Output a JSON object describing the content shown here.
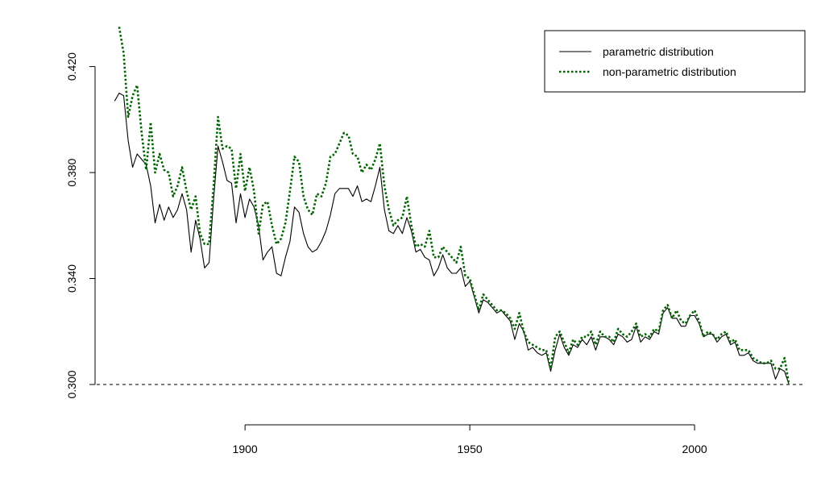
{
  "chart_data": {
    "type": "line",
    "title": "",
    "xlabel": "",
    "ylabel": "",
    "xlim": [
      1867,
      2024
    ],
    "ylim": [
      0.293,
      0.436
    ],
    "x_ticks": [
      1900,
      1950,
      2000
    ],
    "y_ticks": [
      0.3,
      0.34,
      0.38,
      0.42
    ],
    "x_tick_labels": [
      "1900",
      "1950",
      "2000"
    ],
    "y_tick_labels": [
      "0.300",
      "0.340",
      "0.380",
      "0.420"
    ],
    "reference_line": 0.3,
    "grid": false,
    "legend_position": "top-right",
    "series": [
      {
        "name": "parametric distribution",
        "color": "#000000",
        "style": "solid",
        "points": [
          [
            1871,
            0.407
          ],
          [
            1872,
            0.41
          ],
          [
            1873,
            0.409
          ],
          [
            1874,
            0.392
          ],
          [
            1875,
            0.382
          ],
          [
            1876,
            0.387
          ],
          [
            1877,
            0.385
          ],
          [
            1878,
            0.383
          ],
          [
            1879,
            0.375
          ],
          [
            1880,
            0.361
          ],
          [
            1881,
            0.368
          ],
          [
            1882,
            0.362
          ],
          [
            1883,
            0.367
          ],
          [
            1884,
            0.363
          ],
          [
            1885,
            0.366
          ],
          [
            1886,
            0.372
          ],
          [
            1887,
            0.366
          ],
          [
            1888,
            0.35
          ],
          [
            1889,
            0.362
          ],
          [
            1890,
            0.355
          ],
          [
            1891,
            0.344
          ],
          [
            1892,
            0.346
          ],
          [
            1893,
            0.37
          ],
          [
            1894,
            0.39
          ],
          [
            1895,
            0.384
          ],
          [
            1896,
            0.377
          ],
          [
            1897,
            0.376
          ],
          [
            1898,
            0.361
          ],
          [
            1899,
            0.372
          ],
          [
            1900,
            0.363
          ],
          [
            1901,
            0.37
          ],
          [
            1902,
            0.367
          ],
          [
            1903,
            0.36
          ],
          [
            1904,
            0.347
          ],
          [
            1905,
            0.35
          ],
          [
            1906,
            0.352
          ],
          [
            1907,
            0.342
          ],
          [
            1908,
            0.341
          ],
          [
            1909,
            0.348
          ],
          [
            1910,
            0.354
          ],
          [
            1911,
            0.367
          ],
          [
            1912,
            0.365
          ],
          [
            1913,
            0.357
          ],
          [
            1914,
            0.352
          ],
          [
            1915,
            0.35
          ],
          [
            1916,
            0.351
          ],
          [
            1917,
            0.354
          ],
          [
            1918,
            0.358
          ],
          [
            1919,
            0.364
          ],
          [
            1920,
            0.372
          ],
          [
            1921,
            0.374
          ],
          [
            1922,
            0.374
          ],
          [
            1923,
            0.374
          ],
          [
            1924,
            0.371
          ],
          [
            1925,
            0.375
          ],
          [
            1926,
            0.369
          ],
          [
            1927,
            0.37
          ],
          [
            1928,
            0.369
          ],
          [
            1929,
            0.375
          ],
          [
            1930,
            0.382
          ],
          [
            1931,
            0.366
          ],
          [
            1932,
            0.358
          ],
          [
            1933,
            0.357
          ],
          [
            1934,
            0.36
          ],
          [
            1935,
            0.357
          ],
          [
            1936,
            0.363
          ],
          [
            1937,
            0.358
          ],
          [
            1938,
            0.35
          ],
          [
            1939,
            0.351
          ],
          [
            1940,
            0.348
          ],
          [
            1941,
            0.347
          ],
          [
            1942,
            0.341
          ],
          [
            1943,
            0.344
          ],
          [
            1944,
            0.349
          ],
          [
            1945,
            0.344
          ],
          [
            1946,
            0.342
          ],
          [
            1947,
            0.342
          ],
          [
            1948,
            0.344
          ],
          [
            1949,
            0.337
          ],
          [
            1950,
            0.339
          ],
          [
            1951,
            0.333
          ],
          [
            1952,
            0.327
          ],
          [
            1953,
            0.332
          ],
          [
            1954,
            0.331
          ],
          [
            1955,
            0.329
          ],
          [
            1956,
            0.327
          ],
          [
            1957,
            0.328
          ],
          [
            1958,
            0.326
          ],
          [
            1959,
            0.324
          ],
          [
            1960,
            0.317
          ],
          [
            1961,
            0.323
          ],
          [
            1962,
            0.32
          ],
          [
            1963,
            0.313
          ],
          [
            1964,
            0.314
          ],
          [
            1965,
            0.312
          ],
          [
            1966,
            0.311
          ],
          [
            1967,
            0.312
          ],
          [
            1968,
            0.305
          ],
          [
            1969,
            0.313
          ],
          [
            1970,
            0.319
          ],
          [
            1971,
            0.314
          ],
          [
            1972,
            0.311
          ],
          [
            1973,
            0.315
          ],
          [
            1974,
            0.314
          ],
          [
            1975,
            0.317
          ],
          [
            1976,
            0.315
          ],
          [
            1977,
            0.318
          ],
          [
            1978,
            0.313
          ],
          [
            1979,
            0.318
          ],
          [
            1980,
            0.318
          ],
          [
            1981,
            0.317
          ],
          [
            1982,
            0.315
          ],
          [
            1983,
            0.319
          ],
          [
            1984,
            0.318
          ],
          [
            1985,
            0.316
          ],
          [
            1986,
            0.317
          ],
          [
            1987,
            0.322
          ],
          [
            1988,
            0.316
          ],
          [
            1989,
            0.318
          ],
          [
            1990,
            0.317
          ],
          [
            1991,
            0.32
          ],
          [
            1992,
            0.319
          ],
          [
            1993,
            0.327
          ],
          [
            1994,
            0.329
          ],
          [
            1995,
            0.325
          ],
          [
            1996,
            0.325
          ],
          [
            1997,
            0.322
          ],
          [
            1998,
            0.322
          ],
          [
            1999,
            0.326
          ],
          [
            2000,
            0.326
          ],
          [
            2001,
            0.323
          ],
          [
            2002,
            0.318
          ],
          [
            2003,
            0.319
          ],
          [
            2004,
            0.319
          ],
          [
            2005,
            0.316
          ],
          [
            2006,
            0.318
          ],
          [
            2007,
            0.319
          ],
          [
            2008,
            0.315
          ],
          [
            2009,
            0.316
          ],
          [
            2010,
            0.311
          ],
          [
            2011,
            0.311
          ],
          [
            2012,
            0.312
          ],
          [
            2013,
            0.309
          ],
          [
            2014,
            0.308
          ],
          [
            2015,
            0.308
          ],
          [
            2016,
            0.308
          ],
          [
            2017,
            0.308
          ],
          [
            2018,
            0.302
          ],
          [
            2019,
            0.306
          ],
          [
            2020,
            0.305
          ],
          [
            2021,
            0.3
          ]
        ]
      },
      {
        "name": "non-parametric distribution",
        "color": "#006400",
        "style": "dotted",
        "points": [
          [
            1872,
            0.435
          ],
          [
            1873,
            0.425
          ],
          [
            1874,
            0.401
          ],
          [
            1875,
            0.409
          ],
          [
            1876,
            0.413
          ],
          [
            1877,
            0.395
          ],
          [
            1878,
            0.381
          ],
          [
            1879,
            0.399
          ],
          [
            1880,
            0.38
          ],
          [
            1881,
            0.387
          ],
          [
            1882,
            0.381
          ],
          [
            1883,
            0.38
          ],
          [
            1884,
            0.371
          ],
          [
            1885,
            0.375
          ],
          [
            1886,
            0.382
          ],
          [
            1887,
            0.373
          ],
          [
            1888,
            0.366
          ],
          [
            1889,
            0.371
          ],
          [
            1890,
            0.357
          ],
          [
            1891,
            0.353
          ],
          [
            1892,
            0.353
          ],
          [
            1893,
            0.375
          ],
          [
            1894,
            0.401
          ],
          [
            1895,
            0.389
          ],
          [
            1896,
            0.39
          ],
          [
            1897,
            0.389
          ],
          [
            1898,
            0.374
          ],
          [
            1899,
            0.387
          ],
          [
            1900,
            0.373
          ],
          [
            1901,
            0.382
          ],
          [
            1902,
            0.373
          ],
          [
            1903,
            0.357
          ],
          [
            1904,
            0.368
          ],
          [
            1905,
            0.369
          ],
          [
            1906,
            0.36
          ],
          [
            1907,
            0.353
          ],
          [
            1908,
            0.355
          ],
          [
            1909,
            0.361
          ],
          [
            1910,
            0.373
          ],
          [
            1911,
            0.386
          ],
          [
            1912,
            0.384
          ],
          [
            1913,
            0.371
          ],
          [
            1914,
            0.366
          ],
          [
            1915,
            0.364
          ],
          [
            1916,
            0.372
          ],
          [
            1917,
            0.371
          ],
          [
            1918,
            0.376
          ],
          [
            1919,
            0.386
          ],
          [
            1920,
            0.387
          ],
          [
            1921,
            0.391
          ],
          [
            1922,
            0.395
          ],
          [
            1923,
            0.394
          ],
          [
            1924,
            0.387
          ],
          [
            1925,
            0.386
          ],
          [
            1926,
            0.38
          ],
          [
            1927,
            0.383
          ],
          [
            1928,
            0.381
          ],
          [
            1929,
            0.385
          ],
          [
            1930,
            0.391
          ],
          [
            1931,
            0.375
          ],
          [
            1932,
            0.366
          ],
          [
            1933,
            0.36
          ],
          [
            1934,
            0.362
          ],
          [
            1935,
            0.363
          ],
          [
            1936,
            0.371
          ],
          [
            1937,
            0.36
          ],
          [
            1938,
            0.352
          ],
          [
            1939,
            0.353
          ],
          [
            1940,
            0.352
          ],
          [
            1941,
            0.358
          ],
          [
            1942,
            0.348
          ],
          [
            1943,
            0.348
          ],
          [
            1944,
            0.352
          ],
          [
            1945,
            0.35
          ],
          [
            1946,
            0.348
          ],
          [
            1947,
            0.346
          ],
          [
            1948,
            0.352
          ],
          [
            1949,
            0.341
          ],
          [
            1950,
            0.34
          ],
          [
            1951,
            0.334
          ],
          [
            1952,
            0.328
          ],
          [
            1953,
            0.334
          ],
          [
            1954,
            0.332
          ],
          [
            1955,
            0.33
          ],
          [
            1956,
            0.328
          ],
          [
            1957,
            0.328
          ],
          [
            1958,
            0.327
          ],
          [
            1959,
            0.325
          ],
          [
            1960,
            0.321
          ],
          [
            1961,
            0.327
          ],
          [
            1962,
            0.32
          ],
          [
            1963,
            0.316
          ],
          [
            1964,
            0.315
          ],
          [
            1965,
            0.314
          ],
          [
            1966,
            0.313
          ],
          [
            1967,
            0.313
          ],
          [
            1968,
            0.306
          ],
          [
            1969,
            0.318
          ],
          [
            1970,
            0.32
          ],
          [
            1971,
            0.316
          ],
          [
            1972,
            0.312
          ],
          [
            1973,
            0.317
          ],
          [
            1974,
            0.315
          ],
          [
            1975,
            0.318
          ],
          [
            1976,
            0.318
          ],
          [
            1977,
            0.32
          ],
          [
            1978,
            0.315
          ],
          [
            1979,
            0.32
          ],
          [
            1980,
            0.318
          ],
          [
            1981,
            0.318
          ],
          [
            1982,
            0.316
          ],
          [
            1983,
            0.321
          ],
          [
            1984,
            0.319
          ],
          [
            1985,
            0.318
          ],
          [
            1986,
            0.32
          ],
          [
            1987,
            0.323
          ],
          [
            1988,
            0.318
          ],
          [
            1989,
            0.319
          ],
          [
            1990,
            0.318
          ],
          [
            1991,
            0.321
          ],
          [
            1992,
            0.32
          ],
          [
            1993,
            0.328
          ],
          [
            1994,
            0.33
          ],
          [
            1995,
            0.325
          ],
          [
            1996,
            0.328
          ],
          [
            1997,
            0.324
          ],
          [
            1998,
            0.323
          ],
          [
            1999,
            0.326
          ],
          [
            2000,
            0.328
          ],
          [
            2001,
            0.324
          ],
          [
            2002,
            0.318
          ],
          [
            2003,
            0.32
          ],
          [
            2004,
            0.319
          ],
          [
            2005,
            0.317
          ],
          [
            2006,
            0.319
          ],
          [
            2007,
            0.32
          ],
          [
            2008,
            0.316
          ],
          [
            2009,
            0.317
          ],
          [
            2010,
            0.313
          ],
          [
            2011,
            0.313
          ],
          [
            2012,
            0.313
          ],
          [
            2013,
            0.31
          ],
          [
            2014,
            0.309
          ],
          [
            2015,
            0.308
          ],
          [
            2016,
            0.308
          ],
          [
            2017,
            0.309
          ],
          [
            2018,
            0.306
          ],
          [
            2019,
            0.306
          ],
          [
            2020,
            0.31
          ],
          [
            2021,
            0.3
          ]
        ]
      }
    ]
  }
}
